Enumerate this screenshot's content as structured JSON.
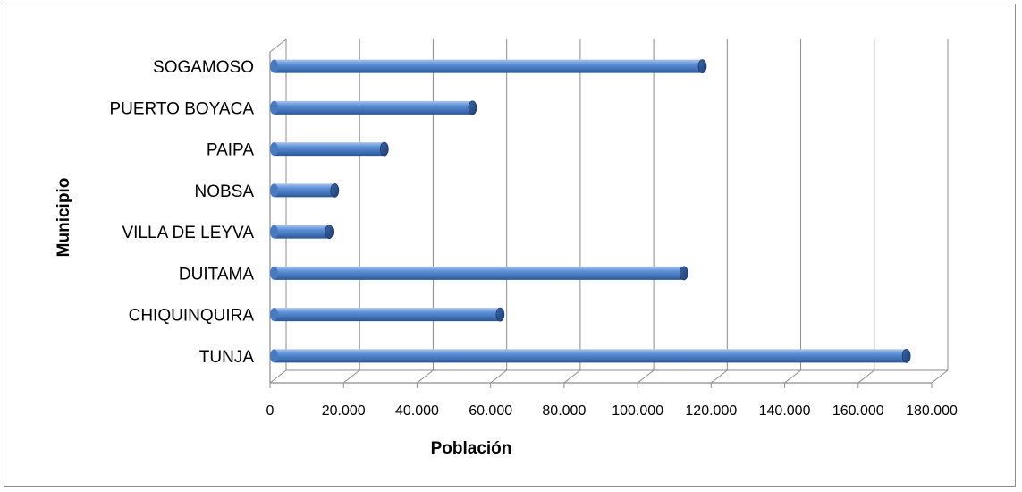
{
  "chart_data": {
    "type": "bar",
    "orientation": "horizontal",
    "categories": [
      "TUNJA",
      "CHIQUINQUIRA",
      "DUITAMA",
      "VILLA DE LEYVA",
      "NOBSA",
      "PAIPA",
      "PUERTO BOYACA",
      "SOGAMOSO"
    ],
    "values": [
      172000,
      61500,
      111500,
      15000,
      16500,
      30000,
      54000,
      116500
    ],
    "xlabel": "Población",
    "ylabel": "Municipio",
    "xlim": [
      0,
      180000
    ],
    "xticks": [
      "0",
      "20.000",
      "40.000",
      "60.000",
      "80.000",
      "100.000",
      "120.000",
      "140.000",
      "160.000",
      "180.000"
    ],
    "grid": true,
    "bar_color": "#4f81bd",
    "legend": "none"
  }
}
